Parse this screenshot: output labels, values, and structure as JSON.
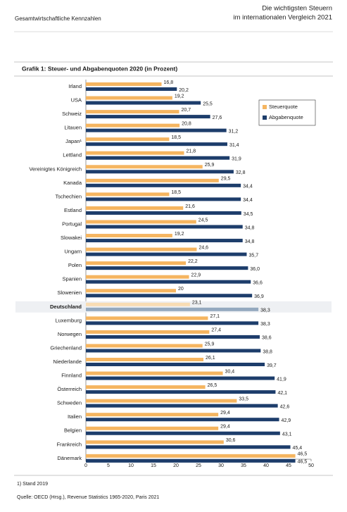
{
  "header": {
    "section": "Gesamtwirtschaftliche Kennzahlen",
    "title_line1": "Die wichtigsten Steuern",
    "title_line2": "im internationalen Vergleich 2021"
  },
  "chart_data": {
    "type": "hbar",
    "title": "Grafik 1:  Steuer- und Abgabenquoten 2020 (in Prozent)",
    "categories": [
      "Irland",
      "USA",
      "Schweiz",
      "Litauen",
      "Japan¹",
      "Lettland",
      "Vereinigtes Königreich",
      "Kanada",
      "Tschechien",
      "Estland",
      "Portugal",
      "Slowakei",
      "Ungarn",
      "Polen",
      "Spanien",
      "Slowenien",
      "Deutschland",
      "Luxemburg",
      "Norwegen",
      "Griechenland",
      "Niederlande",
      "Finnland",
      "Österreich",
      "Schweden",
      "Italien",
      "Belgien",
      "Frankreich",
      "Dänemark"
    ],
    "series": [
      {
        "name": "Steuerquote",
        "color": "#f5b560",
        "values": [
          16.8,
          19.2,
          20.7,
          20.8,
          18.5,
          21.8,
          25.9,
          29.5,
          18.5,
          21.6,
          24.5,
          19.2,
          24.6,
          22.2,
          22.9,
          20,
          23.1,
          27.1,
          27.4,
          25.9,
          26.1,
          30.4,
          26.5,
          33.5,
          29.4,
          29.4,
          30.6,
          46.5
        ],
        "value_labels": [
          "16,8",
          "19,2",
          "20,7",
          "20,8",
          "18,5",
          "21,8",
          "25,9",
          "29,5",
          "18,5",
          "21,6",
          "24,5",
          "19,2",
          "24,6",
          "22,2",
          "22,9",
          "20",
          "23,1",
          "27,1",
          "27,4",
          "25,9",
          "26,1",
          "30,4",
          "26,5",
          "33,5",
          "29,4",
          "29,4",
          "30,6",
          "46,5"
        ]
      },
      {
        "name": "Abgabenquote",
        "color": "#1d3d6b",
        "values": [
          20.2,
          25.5,
          27.6,
          31.2,
          31.4,
          31.9,
          32.8,
          34.4,
          34.4,
          34.5,
          34.8,
          34.8,
          35.7,
          36.0,
          36.6,
          36.9,
          38.3,
          38.3,
          38.6,
          38.8,
          39.7,
          41.9,
          42.1,
          42.6,
          42.9,
          43.1,
          45.4,
          46.5
        ],
        "value_labels": [
          "20,2",
          "25,5",
          "27,6",
          "31,2",
          "31,4",
          "31,9",
          "32,8",
          "34,4",
          "34,4",
          "34,5",
          "34,8",
          "34,8",
          "35,7",
          "36,0",
          "36,6",
          "36,9",
          "38,3",
          "38,3",
          "38,6",
          "38,8",
          "39,7",
          "41,9",
          "42,1",
          "42,6",
          "42,9",
          "43,1",
          "45,4",
          "46,5"
        ]
      }
    ],
    "highlight": {
      "index": 16,
      "colors": [
        "#f8dcb4",
        "#94a9bf"
      ]
    },
    "xlim": [
      0,
      50
    ],
    "xticks": [
      0,
      5,
      10,
      15,
      20,
      25,
      30,
      35,
      40,
      45,
      50
    ],
    "grid": false,
    "legend": "top-right",
    "footnote": "1) Stand 2019",
    "source": "Quelle: OECD (Hrsg.), Revenue Statistics 1965-2020, Paris 2021"
  }
}
